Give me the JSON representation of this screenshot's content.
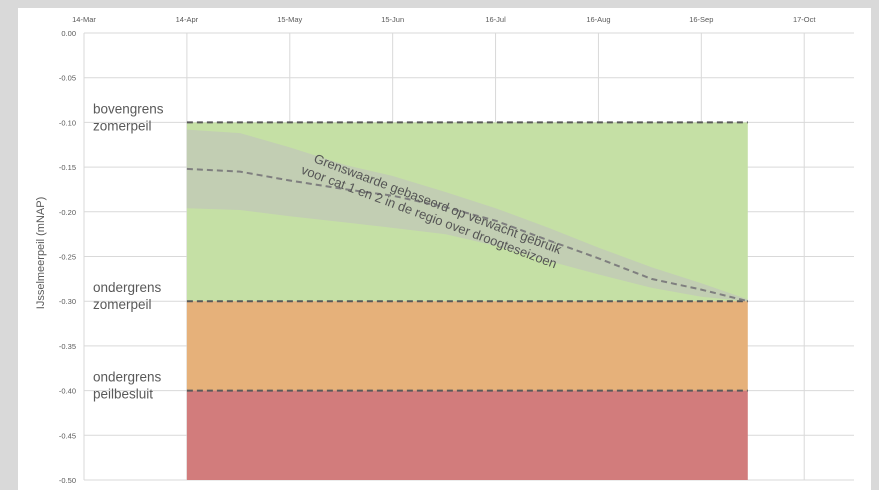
{
  "chart_data": {
    "type": "area",
    "title": "",
    "xlabel": "",
    "ylabel": "IJsselmeerpeil (mNAP)",
    "x_ticks": [
      "14-Mar",
      "14-Apr",
      "15-May",
      "15-Jun",
      "16-Jul",
      "16-Aug",
      "16-Sep",
      "17-Oct"
    ],
    "y_ticks": [
      "0.00",
      "-0.05",
      "-0.10",
      "-0.15",
      "-0.20",
      "-0.25",
      "-0.30",
      "-0.35",
      "-0.40",
      "-0.45",
      "-0.50"
    ],
    "xlim": [
      "2023-03-14",
      "2023-11-01"
    ],
    "ylim": [
      -0.5,
      0.0
    ],
    "grid": true,
    "bands": [
      {
        "from": -0.3,
        "to": -0.1,
        "color": "#c5e0a5",
        "x_start": "2023-04-14",
        "x_end": "2023-09-30"
      },
      {
        "from": -0.4,
        "to": -0.3,
        "color": "#e6b17a",
        "x_start": "2023-04-14",
        "x_end": "2023-09-30"
      },
      {
        "from": -0.5,
        "to": -0.4,
        "color": "#d27c7c",
        "x_start": "2023-04-14",
        "x_end": "2023-09-30"
      }
    ],
    "threshold_lines": [
      {
        "y": -0.1,
        "label": "bovengrens zomerpeil",
        "label_lines": [
          "bovengrens",
          "zomerpeil"
        ]
      },
      {
        "y": -0.3,
        "label": "ondergrens zomerpeil",
        "label_lines": [
          "ondergrens",
          "zomerpeil"
        ]
      },
      {
        "y": -0.4,
        "label": "ondergrens peilbesluit",
        "label_lines": [
          "ondergrens",
          "peilbesluit"
        ]
      }
    ],
    "series": [
      {
        "name": "Grenswaarde gebaseerd op verwacht gebruik voor cat 1 en 2 in de regio over droogteseizoen",
        "style": "dashed",
        "x": [
          "2023-04-14",
          "2023-04-30",
          "2023-05-15",
          "2023-06-01",
          "2023-06-15",
          "2023-07-01",
          "2023-07-16",
          "2023-08-01",
          "2023-08-16",
          "2023-09-01",
          "2023-09-16",
          "2023-09-30"
        ],
        "values": [
          -0.152,
          -0.155,
          -0.165,
          -0.175,
          -0.182,
          -0.195,
          -0.21,
          -0.232,
          -0.252,
          -0.275,
          -0.287,
          -0.3
        ],
        "band_upper": [
          -0.108,
          -0.112,
          -0.128,
          -0.148,
          -0.16,
          -0.178,
          -0.196,
          -0.218,
          -0.24,
          -0.262,
          -0.28,
          -0.298
        ],
        "band_lower": [
          -0.196,
          -0.198,
          -0.205,
          -0.212,
          -0.218,
          -0.225,
          -0.238,
          -0.255,
          -0.27,
          -0.285,
          -0.295,
          -0.3
        ]
      }
    ],
    "curve_annotation": [
      "Grenswaarde gebaseerd op verwacht gebruik",
      "voor cat 1 en 2 in de regio over droogteseizoen"
    ],
    "colors": {
      "green_zone": "#c5e0a5",
      "orange_zone": "#e6b17a",
      "red_zone": "#d27c7c",
      "uncertainty_band": "#bfbfbf",
      "lines": "#595959",
      "grid": "#d9d9d9"
    }
  }
}
